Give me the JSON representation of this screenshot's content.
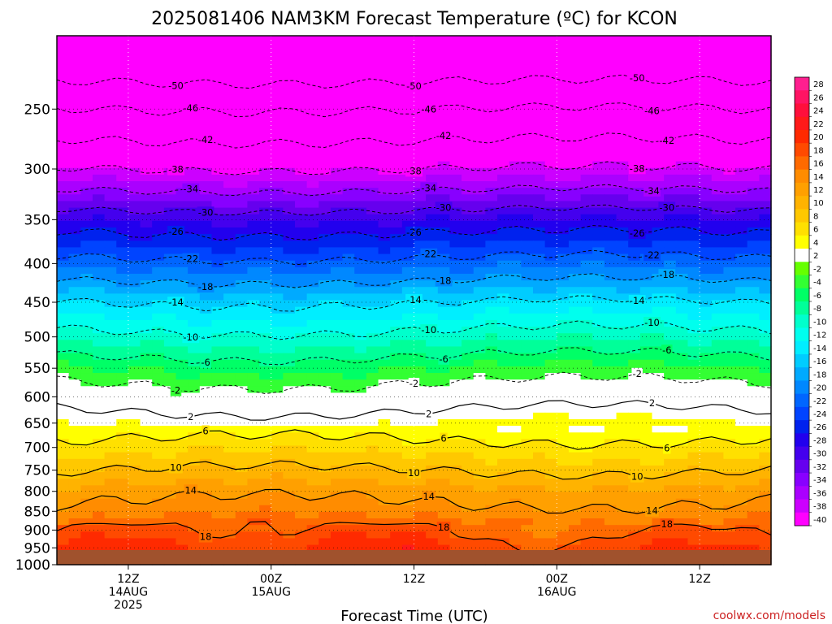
{
  "chart_data": {
    "type": "heatmap",
    "title": "2025081406 NAM3KM Forecast Temperature (ºC) for KCON",
    "xlabel": "Forecast Time (UTC)",
    "ylabel": "",
    "x_ticks": [
      {
        "lines": [
          "12Z",
          "14AUG",
          "2025"
        ],
        "hour": 6
      },
      {
        "lines": [
          "00Z",
          "15AUG"
        ],
        "hour": 18
      },
      {
        "lines": [
          "12Z"
        ],
        "hour": 30
      },
      {
        "lines": [
          "00Z",
          "16AUG"
        ],
        "hour": 42
      },
      {
        "lines": [
          "12Z"
        ],
        "hour": 54
      }
    ],
    "x_range_hours": [
      0,
      60
    ],
    "y_ticks": [
      250,
      300,
      350,
      400,
      450,
      500,
      550,
      600,
      650,
      700,
      750,
      800,
      850,
      900,
      950,
      1000
    ],
    "y_range_mb": [
      200,
      1000
    ],
    "colorbar": {
      "labels": [
        "28",
        "26",
        "24",
        "22",
        "20",
        "18",
        "16",
        "14",
        "12",
        "10",
        "8",
        "6",
        "4",
        "2",
        "-2",
        "-4",
        "-6",
        "-8",
        "-10",
        "-12",
        "-14",
        "-16",
        "-18",
        "-20",
        "-22",
        "-24",
        "-26",
        "-28",
        "-30",
        "-32",
        "-34",
        "-36",
        "-38",
        "-40"
      ],
      "colors": [
        "#ff1f8f",
        "#ff1463",
        "#ff0f3c",
        "#ff1a1a",
        "#ff2a00",
        "#ff4a00",
        "#ff6a00",
        "#ff8c00",
        "#ffa000",
        "#ffb300",
        "#ffc800",
        "#ffe000",
        "#ffff00",
        "#ffffff",
        "#66ff00",
        "#33ff33",
        "#00ff66",
        "#00ff99",
        "#00ffcc",
        "#00ffee",
        "#00eeff",
        "#00ccff",
        "#00aaff",
        "#0088ff",
        "#0066ff",
        "#0044ff",
        "#0022ee",
        "#2200ee",
        "#4400ee",
        "#6600ee",
        "#8800ff",
        "#aa00ff",
        "#cc00ff",
        "#ff00ff"
      ]
    },
    "profile_temps": [
      {
        "p": 200,
        "t": -56
      },
      {
        "p": 250,
        "t": -46
      },
      {
        "p": 300,
        "t": -38
      },
      {
        "p": 350,
        "t": -28
      },
      {
        "p": 400,
        "t": -21
      },
      {
        "p": 450,
        "t": -14
      },
      {
        "p": 500,
        "t": -9
      },
      {
        "p": 550,
        "t": -4
      },
      {
        "p": 600,
        "t": 0
      },
      {
        "p": 650,
        "t": 4
      },
      {
        "p": 700,
        "t": 7
      },
      {
        "p": 750,
        "t": 10
      },
      {
        "p": 800,
        "t": 13
      },
      {
        "p": 850,
        "t": 15
      },
      {
        "p": 900,
        "t": 18
      },
      {
        "p": 950,
        "t": 20
      },
      {
        "p": 1000,
        "t": 22
      }
    ],
    "contour_labels": [
      "-50",
      "-46",
      "-42",
      "-38",
      "-34",
      "-30",
      "-26",
      "-22",
      "-18",
      "-14",
      "-10",
      "-6",
      "-2",
      "2",
      "6",
      "10",
      "14",
      "18"
    ],
    "surface_color": "#a0522d",
    "grid": true
  },
  "credit": "coolwx.com/models"
}
